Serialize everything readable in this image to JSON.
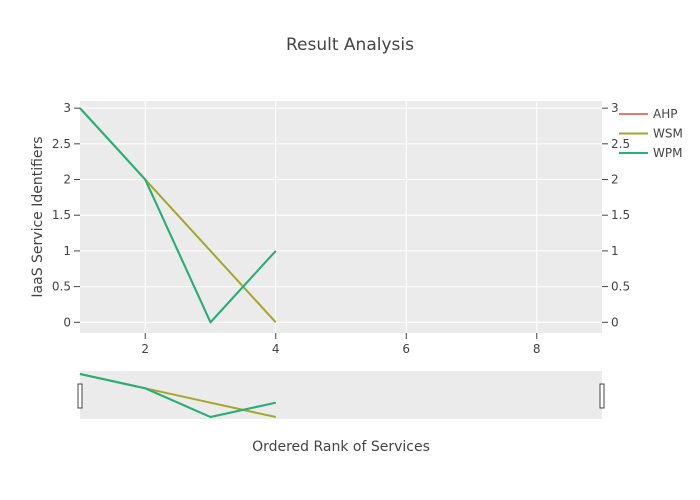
{
  "chart_data": {
    "type": "line",
    "title": "Result Analysis",
    "xlabel": "Ordered Rank of Services",
    "ylabel": "IaaS Service Identifiers",
    "xlim": [
      1,
      9
    ],
    "ylim": [
      -0.15,
      3.1
    ],
    "x_ticks": [
      "2",
      "4",
      "6",
      "8"
    ],
    "y_ticks": [
      "0",
      "0.5",
      "1",
      "1.5",
      "2",
      "2.5",
      "3"
    ],
    "y2_ticks": [
      "0",
      "0.5",
      "1",
      "1.5",
      "2",
      "2.5",
      "3"
    ],
    "grid": true,
    "legend_position": "top-right",
    "rangeslider": true,
    "series": [
      {
        "name": "AHP",
        "color": "#e8786c",
        "x": [
          1,
          2,
          3,
          4
        ],
        "y": [
          3,
          2,
          0,
          1
        ]
      },
      {
        "name": "WSM",
        "color": "#a6a62a",
        "x": [
          1,
          2,
          3,
          4
        ],
        "y": [
          3,
          2,
          1,
          0
        ]
      },
      {
        "name": "WPM",
        "color": "#1fb37a",
        "x": [
          1,
          2,
          3,
          4
        ],
        "y": [
          3,
          2,
          0,
          1
        ]
      }
    ]
  }
}
